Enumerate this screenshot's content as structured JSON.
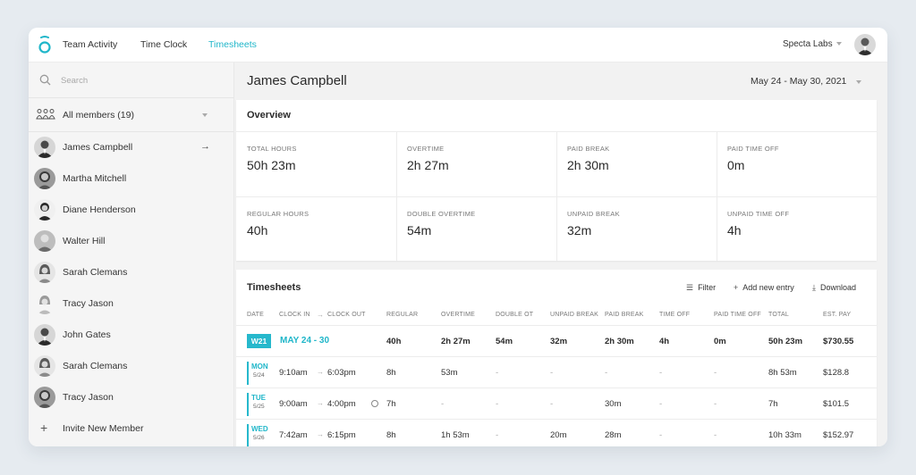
{
  "nav": {
    "items": [
      "Team Activity",
      "Time Clock",
      "Timesheets"
    ],
    "active_index": 2
  },
  "org": {
    "name": "Specta Labs"
  },
  "sidebar": {
    "search_placeholder": "Search",
    "all_members_label": "All members (19)",
    "members": [
      "James Campbell",
      "Martha Mitchell",
      "Diane Henderson",
      "Walter Hill",
      "Sarah Clemans",
      "Tracy Jason",
      "John Gates",
      "Sarah Clemans",
      "Tracy Jason"
    ],
    "selected_index": 0,
    "invite_label": "Invite New Member"
  },
  "header": {
    "title": "James Campbell",
    "date_range": "May 24 - May 30, 2021"
  },
  "overview": {
    "title": "Overview",
    "stats": [
      {
        "label": "TOTAL HOURS",
        "value": "50h 23m"
      },
      {
        "label": "OVERTIME",
        "value": "2h 27m"
      },
      {
        "label": "PAID BREAK",
        "value": "2h 30m"
      },
      {
        "label": "PAID TIME OFF",
        "value": "0m"
      },
      {
        "label": "REGULAR HOURS",
        "value": "40h"
      },
      {
        "label": "DOUBLE OVERTIME",
        "value": "54m"
      },
      {
        "label": "UNPAID BREAK",
        "value": "32m"
      },
      {
        "label": "UNPAID TIME OFF",
        "value": "4h"
      }
    ]
  },
  "timesheets": {
    "title": "Timesheets",
    "actions": {
      "filter": "Filter",
      "add": "Add new entry",
      "download": "Download"
    },
    "columns": {
      "date": "DATE",
      "clock_in": "CLOCK IN",
      "clock_out": "CLOCK OUT",
      "regular": "REGULAR",
      "overtime": "OVERTIME",
      "double_ot": "DOUBLE OT",
      "unpaid_break": "UNPAID BREAK",
      "paid_break": "PAID BREAK",
      "time_off": "TIME OFF",
      "paid_time_off": "PAID TIME OFF",
      "total": "TOTAL",
      "est_pay": "EST. PAY"
    },
    "week": {
      "badge": "W21",
      "range": "MAY 24 - 30",
      "regular": "40h",
      "overtime": "2h 27m",
      "double_ot": "54m",
      "unpaid_break": "32m",
      "paid_break": "2h 30m",
      "time_off": "4h",
      "paid_time_off": "0m",
      "total": "50h 23m",
      "est_pay": "$730.55"
    },
    "days": [
      {
        "day": "MON",
        "date": "5/24",
        "clock_in": "9:10am",
        "clock_out": "6:03pm",
        "regular": "8h",
        "overtime": "53m",
        "double_ot": "-",
        "unpaid_break": "-",
        "paid_break": "-",
        "time_off": "-",
        "paid_time_off": "-",
        "total": "8h 53m",
        "est_pay": "$128.8"
      },
      {
        "day": "TUE",
        "date": "5/25",
        "clock_in": "9:00am",
        "clock_out": "4:00pm",
        "regular": "7h",
        "overtime": "-",
        "double_ot": "-",
        "unpaid_break": "-",
        "paid_break": "30m",
        "time_off": "-",
        "paid_time_off": "-",
        "total": "7h",
        "est_pay": "$101.5"
      },
      {
        "day": "WED",
        "date": "5/26",
        "clock_in": "7:42am",
        "clock_out": "6:15pm",
        "regular": "8h",
        "overtime": "1h 53m",
        "double_ot": "-",
        "unpaid_break": "20m",
        "paid_break": "28m",
        "time_off": "-",
        "paid_time_off": "-",
        "total": "10h 33m",
        "est_pay": "$152.97"
      }
    ]
  },
  "colors": {
    "accent": "#1fb6c9",
    "badge": "#26b8cc"
  }
}
